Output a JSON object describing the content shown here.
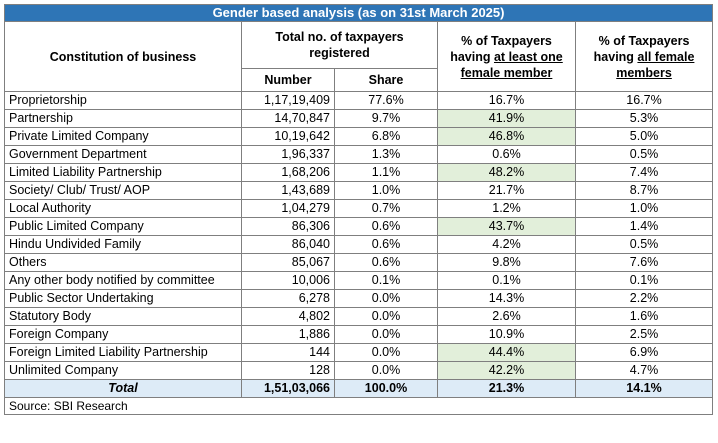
{
  "title": "Gender based analysis (as on 31st March 2025)",
  "headers": {
    "constitution": "Constitution of business",
    "total_group": "Total no. of taxpayers registered",
    "number": "Number",
    "share": "Share",
    "atleast_prefix": "% of Taxpayers having ",
    "atleast_underlined": "at least one female member",
    "all_prefix": "% of Taxpayers having ",
    "all_underlined": "all female members"
  },
  "rows": [
    {
      "name": "Proprietorship",
      "number": "1,17,19,409",
      "share": "77.6%",
      "atleast": "16.7%",
      "all": "16.7%",
      "highlight": false
    },
    {
      "name": "Partnership",
      "number": "14,70,847",
      "share": "9.7%",
      "atleast": "41.9%",
      "all": "5.3%",
      "highlight": true
    },
    {
      "name": "Private Limited Company",
      "number": "10,19,642",
      "share": "6.8%",
      "atleast": "46.8%",
      "all": "5.0%",
      "highlight": true
    },
    {
      "name": "Government Department",
      "number": "1,96,337",
      "share": "1.3%",
      "atleast": "0.6%",
      "all": "0.5%",
      "highlight": false
    },
    {
      "name": "Limited Liability Partnership",
      "number": "1,68,206",
      "share": "1.1%",
      "atleast": "48.2%",
      "all": "7.4%",
      "highlight": true
    },
    {
      "name": "Society/ Club/ Trust/ AOP",
      "number": "1,43,689",
      "share": "1.0%",
      "atleast": "21.7%",
      "all": "8.7%",
      "highlight": false
    },
    {
      "name": "Local Authority",
      "number": "1,04,279",
      "share": "0.7%",
      "atleast": "1.2%",
      "all": "1.0%",
      "highlight": false
    },
    {
      "name": "Public Limited Company",
      "number": "86,306",
      "share": "0.6%",
      "atleast": "43.7%",
      "all": "1.4%",
      "highlight": true
    },
    {
      "name": "Hindu Undivided Family",
      "number": "86,040",
      "share": "0.6%",
      "atleast": "4.2%",
      "all": "0.5%",
      "highlight": false
    },
    {
      "name": "Others",
      "number": "85,067",
      "share": "0.6%",
      "atleast": "9.8%",
      "all": "7.6%",
      "highlight": false
    },
    {
      "name": "Any other body notified by committee",
      "number": "10,006",
      "share": "0.1%",
      "atleast": "0.1%",
      "all": "0.1%",
      "highlight": false
    },
    {
      "name": "Public Sector Undertaking",
      "number": "6,278",
      "share": "0.0%",
      "atleast": "14.3%",
      "all": "2.2%",
      "highlight": false
    },
    {
      "name": "Statutory Body",
      "number": "4,802",
      "share": "0.0%",
      "atleast": "2.6%",
      "all": "1.6%",
      "highlight": false
    },
    {
      "name": "Foreign Company",
      "number": "1,886",
      "share": "0.0%",
      "atleast": "10.9%",
      "all": "2.5%",
      "highlight": false
    },
    {
      "name": "Foreign Limited Liability Partnership",
      "number": "144",
      "share": "0.0%",
      "atleast": "44.4%",
      "all": "6.9%",
      "highlight": true
    },
    {
      "name": "Unlimited Company",
      "number": "128",
      "share": "0.0%",
      "atleast": "42.2%",
      "all": "4.7%",
      "highlight": true
    }
  ],
  "total": {
    "name": "Total",
    "number": "1,51,03,066",
    "share": "100.0%",
    "atleast": "21.3%",
    "all": "14.1%"
  },
  "source": "Source: SBI Research",
  "colors": {
    "title_bg": "#2e75b6",
    "highlight": "#e2efda",
    "total_bg": "#ddebf7",
    "border": "#7f7f7f"
  }
}
